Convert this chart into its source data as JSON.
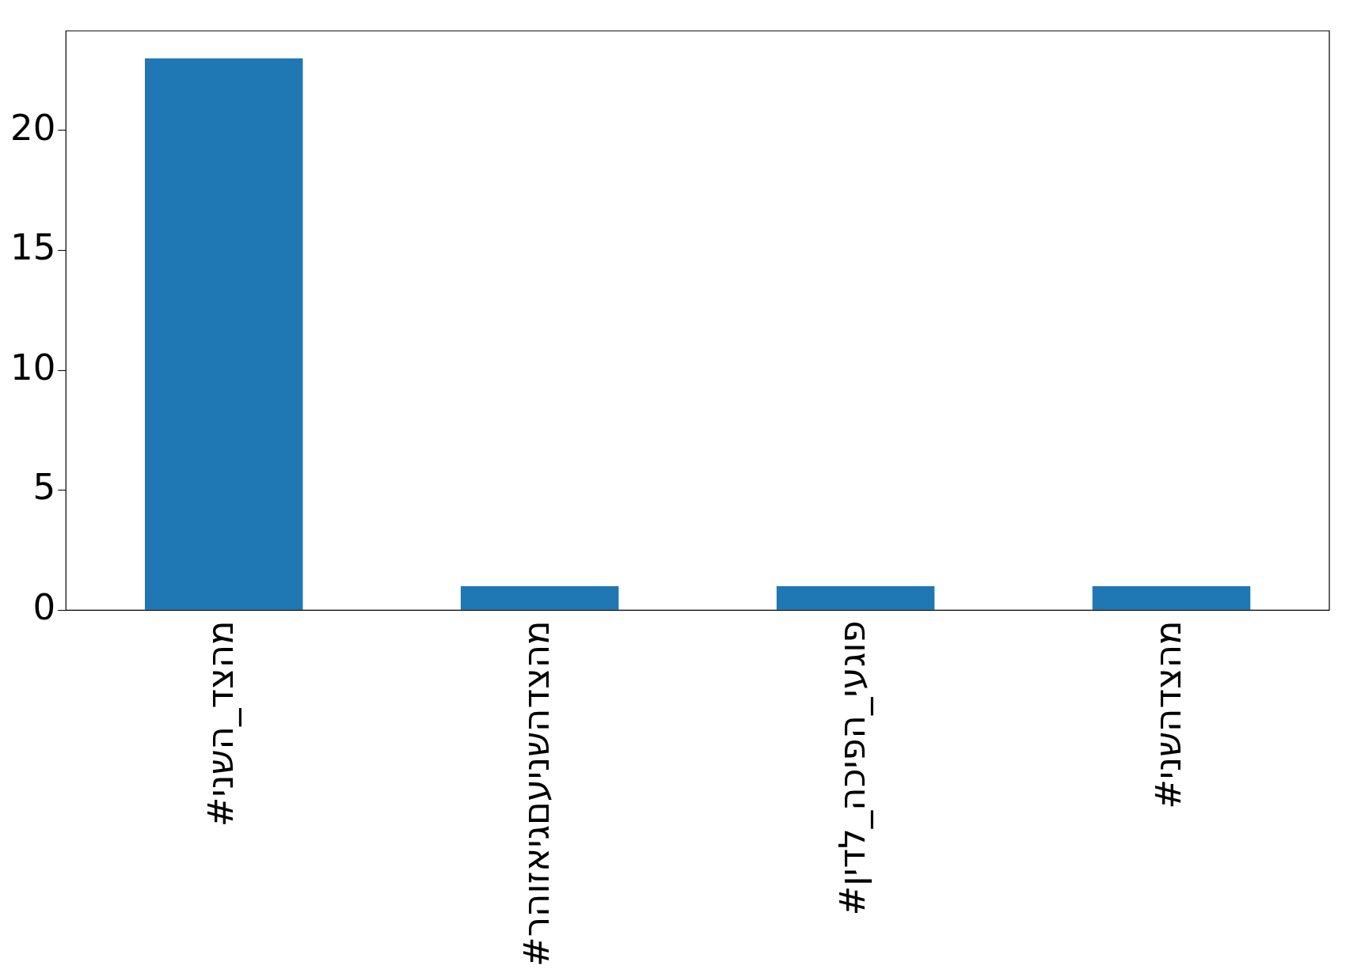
{
  "chart_data": {
    "type": "bar",
    "categories": [
      "#מהצד_השני",
      "#מהצדהשניעםגיאזוהר",
      "#פוגעי_הפיכה_לדין",
      "#מהצדהשני"
    ],
    "values": [
      23,
      1,
      1,
      1
    ],
    "color": "#1f77b4",
    "ylim": [
      0,
      24.15
    ],
    "yticks": [
      0,
      5,
      10,
      15,
      20
    ],
    "grid": false,
    "legend": false
  }
}
